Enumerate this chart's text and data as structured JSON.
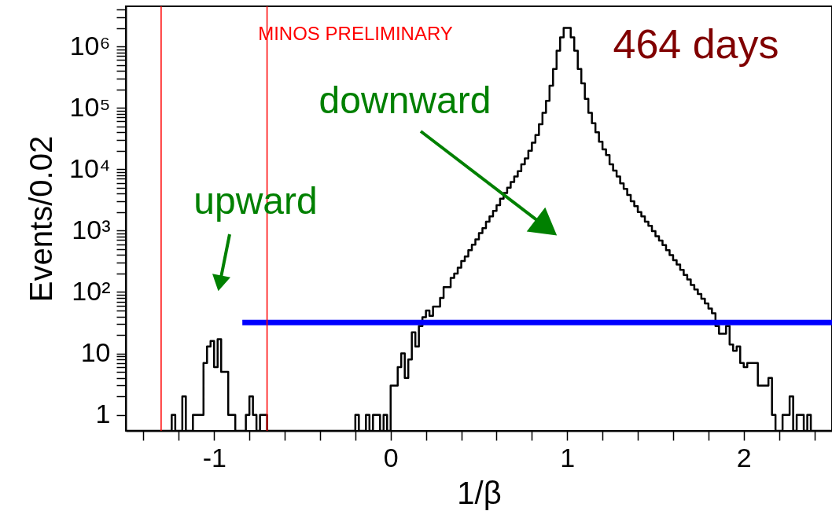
{
  "chart_data": {
    "type": "histogram",
    "xlabel": "1/β",
    "ylabel": "Events/0.02",
    "color": "#000000",
    "log": true,
    "bins": [
      -1.5,
      -1.48,
      -1.46,
      -1.44,
      -1.42,
      -1.4,
      -1.38,
      -1.36,
      -1.34,
      -1.32,
      -1.3,
      -1.28,
      -1.26,
      -1.24,
      -1.22,
      -1.2,
      -1.18,
      -1.16,
      -1.14,
      -1.12,
      -1.1,
      -1.08,
      -1.06,
      -1.04,
      -1.02,
      -1.0,
      -0.98,
      -0.96,
      -0.94,
      -0.92,
      -0.9,
      -0.88,
      -0.86,
      -0.84,
      -0.82,
      -0.8,
      -0.78,
      -0.76,
      -0.74,
      -0.72,
      -0.7,
      -0.68,
      -0.66,
      -0.64,
      -0.62,
      -0.6,
      -0.58,
      -0.56,
      -0.54,
      -0.52,
      -0.5,
      -0.48,
      -0.46,
      -0.44,
      -0.42,
      -0.4,
      -0.38,
      -0.36,
      -0.34,
      -0.32,
      -0.3,
      -0.28,
      -0.26,
      -0.24,
      -0.22,
      -0.2,
      -0.18,
      -0.16,
      -0.14,
      -0.12,
      -0.1,
      -0.08,
      -0.06,
      -0.04,
      -0.02,
      0.0,
      0.02,
      0.04,
      0.06,
      0.08,
      0.1,
      0.12,
      0.14,
      0.16,
      0.18,
      0.2,
      0.22,
      0.24,
      0.26,
      0.28,
      0.3,
      0.32,
      0.34,
      0.36,
      0.38,
      0.4,
      0.42,
      0.44,
      0.46,
      0.48,
      0.5,
      0.52,
      0.54,
      0.56,
      0.58,
      0.6,
      0.62,
      0.64,
      0.66,
      0.68,
      0.7,
      0.72,
      0.74,
      0.76,
      0.78,
      0.8,
      0.82,
      0.84,
      0.86,
      0.88,
      0.9,
      0.92,
      0.94,
      0.96,
      0.98,
      1.0,
      1.02,
      1.04,
      1.06,
      1.08,
      1.1,
      1.12,
      1.14,
      1.16,
      1.18,
      1.2,
      1.22,
      1.24,
      1.26,
      1.28,
      1.3,
      1.32,
      1.34,
      1.36,
      1.38,
      1.4,
      1.42,
      1.44,
      1.46,
      1.48,
      1.5,
      1.52,
      1.54,
      1.56,
      1.58,
      1.6,
      1.62,
      1.64,
      1.66,
      1.68,
      1.7,
      1.72,
      1.74,
      1.76,
      1.78,
      1.8,
      1.82,
      1.84,
      1.86,
      1.88,
      1.9,
      1.92,
      1.94,
      1.96,
      1.98,
      2.0,
      2.02,
      2.04,
      2.06,
      2.08,
      2.1,
      2.12,
      2.14,
      2.16,
      2.18,
      2.2,
      2.22,
      2.24,
      2.26,
      2.28,
      2.3,
      2.32,
      2.34,
      2.36,
      2.38,
      2.4,
      2.42,
      2.44,
      2.46,
      2.48,
      2.5
    ],
    "values": [
      null,
      null,
      null,
      null,
      null,
      null,
      null,
      null,
      null,
      null,
      null,
      null,
      null,
      1,
      null,
      null,
      2,
      null,
      null,
      1,
      1,
      1,
      7,
      13,
      16,
      6,
      17,
      5,
      5,
      1,
      1,
      null,
      null,
      null,
      1,
      2,
      1,
      null,
      1,
      1,
      null,
      null,
      null,
      null,
      null,
      null,
      null,
      null,
      null,
      null,
      null,
      null,
      null,
      null,
      null,
      null,
      null,
      null,
      null,
      null,
      null,
      null,
      null,
      null,
      null,
      1,
      null,
      null,
      1,
      null,
      1,
      1,
      null,
      1,
      null,
      3,
      3,
      6,
      10,
      4,
      8,
      22,
      13,
      28,
      39,
      50,
      41,
      58,
      58,
      80,
      120,
      120,
      170,
      200,
      250,
      320,
      380,
      480,
      590,
      720,
      910,
      1100,
      1400,
      1700,
      2100,
      2600,
      3300,
      4100,
      5000,
      6200,
      7600,
      9300,
      12000,
      15000,
      20000,
      27000,
      36000,
      54000,
      83000,
      130000,
      230000,
      430000,
      850000,
      1400000,
      2000000,
      2000000,
      1400000,
      850000,
      430000,
      250000,
      140000,
      83000,
      56000,
      40000,
      28000,
      21000,
      17000,
      12000,
      9500,
      7600,
      5900,
      4800,
      3800,
      3000,
      2500,
      2000,
      1700,
      1400,
      1200,
      980,
      810,
      690,
      580,
      480,
      400,
      330,
      280,
      230,
      190,
      160,
      130,
      110,
      93,
      78,
      65,
      54,
      45,
      28,
      21,
      21,
      28,
      14,
      11,
      13,
      7,
      6,
      7,
      7,
      7,
      3,
      3,
      3,
      4,
      1,
      null,
      null,
      1,
      1,
      2,
      null,
      1,
      1,
      null,
      1,
      null,
      null,
      null,
      null,
      null,
      null
    ],
    "series": [
      {
        "type": "line",
        "x": [
          -0.84,
          2.5
        ],
        "values": [
          32,
          32
        ],
        "color": "#0000ff"
      }
    ],
    "ref_lines": [
      {
        "axis": "x",
        "value": -1.3,
        "color": "#ff0000"
      },
      {
        "axis": "x",
        "value": -0.7,
        "color": "#ff0000"
      }
    ],
    "annotations": [
      "MINOS PRELIMINARY",
      "464 days",
      "upward",
      "downward"
    ],
    "xlim": [
      -1.5,
      2.5
    ],
    "ylim": [
      0.55,
      4500000
    ],
    "xticks": [
      {
        "value": -1.4,
        "label": null
      },
      {
        "value": -1.2,
        "label": null
      },
      -1,
      {
        "value": -0.8,
        "label": null
      },
      {
        "value": -0.6,
        "label": null
      },
      {
        "value": -0.4,
        "label": null
      },
      {
        "value": -0.2,
        "label": null
      },
      0,
      {
        "value": 0.2,
        "label": null
      },
      {
        "value": 0.4,
        "label": null
      },
      {
        "value": 0.6,
        "label": null
      },
      {
        "value": 0.8,
        "label": null
      },
      1,
      {
        "value": 1.2,
        "label": null
      },
      {
        "value": 1.4,
        "label": null
      },
      {
        "value": 1.6,
        "label": null
      },
      {
        "value": 1.8,
        "label": null
      },
      2,
      {
        "value": 2.2,
        "label": null
      },
      {
        "value": 2.4,
        "label": null
      }
    ],
    "yticks": [
      1,
      {
        "value": 2,
        "label": null
      },
      {
        "value": 3,
        "label": null
      },
      {
        "value": 4,
        "label": null
      },
      {
        "value": 5,
        "label": null
      },
      {
        "value": 6,
        "label": null
      },
      {
        "value": 7,
        "label": null
      },
      {
        "value": 8,
        "label": null
      },
      {
        "value": 9,
        "label": null
      },
      10,
      {
        "value": 20,
        "label": null
      },
      {
        "value": 30,
        "label": null
      },
      {
        "value": 40,
        "label": null
      },
      {
        "value": 50,
        "label": null
      },
      {
        "value": 60,
        "label": null
      },
      {
        "value": 70,
        "label": null
      },
      {
        "value": 80,
        "label": null
      },
      {
        "value": 90,
        "label": null
      },
      {
        "value": 100,
        "label": "10²"
      },
      {
        "value": 200,
        "label": null
      },
      {
        "value": 300,
        "label": null
      },
      {
        "value": 400,
        "label": null
      },
      {
        "value": 500,
        "label": null
      },
      {
        "value": 600,
        "label": null
      },
      {
        "value": 700,
        "label": null
      },
      {
        "value": 800,
        "label": null
      },
      {
        "value": 900,
        "label": null
      },
      {
        "value": 1000,
        "label": "10³"
      },
      {
        "value": 2000,
        "label": null
      },
      {
        "value": 3000,
        "label": null
      },
      {
        "value": 4000,
        "label": null
      },
      {
        "value": 5000,
        "label": null
      },
      {
        "value": 6000,
        "label": null
      },
      {
        "value": 7000,
        "label": null
      },
      {
        "value": 8000,
        "label": null
      },
      {
        "value": 9000,
        "label": null
      },
      {
        "value": 10000,
        "label": "10⁴"
      },
      {
        "value": 20000,
        "label": null
      },
      {
        "value": 30000,
        "label": null
      },
      {
        "value": 40000,
        "label": null
      },
      {
        "value": 50000,
        "label": null
      },
      {
        "value": 60000,
        "label": null
      },
      {
        "value": 70000,
        "label": null
      },
      {
        "value": 80000,
        "label": null
      },
      {
        "value": 90000,
        "label": null
      },
      {
        "value": 100000,
        "label": "10⁵"
      },
      {
        "value": 200000,
        "label": null
      },
      {
        "value": 300000,
        "label": null
      },
      {
        "value": 400000,
        "label": null
      },
      {
        "value": 500000,
        "label": null
      },
      {
        "value": 600000,
        "label": null
      },
      {
        "value": 700000,
        "label": null
      },
      {
        "value": 800000,
        "label": null
      },
      {
        "value": 900000,
        "label": null
      },
      {
        "value": 1000000,
        "label": "10⁶"
      },
      {
        "value": 2000000,
        "label": null
      },
      {
        "value": 3000000,
        "label": null
      },
      {
        "value": 4000000,
        "label": null
      }
    ]
  }
}
